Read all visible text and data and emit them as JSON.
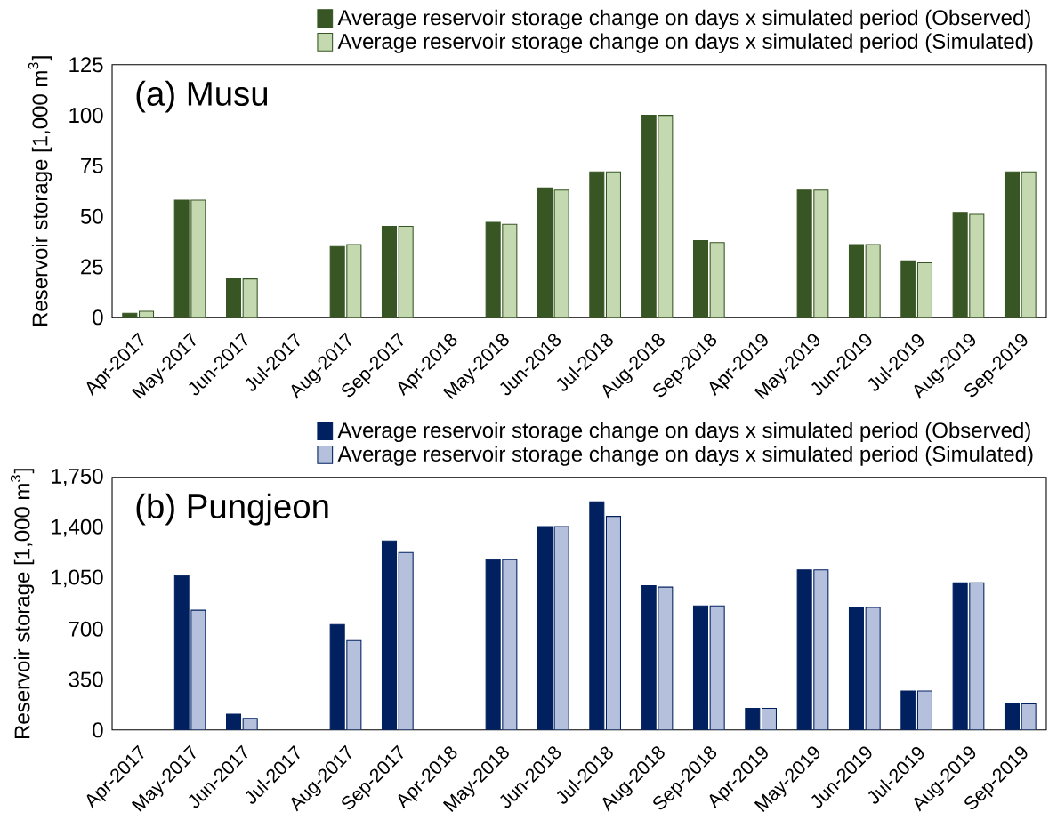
{
  "chart_data": [
    {
      "type": "bar",
      "title": "(a) Musu",
      "ylabel": "Reservoir storage [1,000 m$^{3}$]",
      "categories": [
        "Apr-2017",
        "May-2017",
        "Jun-2017",
        "Jul-2017",
        "Aug-2017",
        "Sep-2017",
        "Apr-2018",
        "May-2018",
        "Jun-2018",
        "Jul-2018",
        "Aug-2018",
        "Sep-2018",
        "Apr-2019",
        "May-2019",
        "Jun-2019",
        "Jul-2019",
        "Aug-2019",
        "Sep-2019"
      ],
      "series": [
        {
          "name": "Average reservoir storage change on days x simulated period (Observed)",
          "color": "#375623",
          "values": [
            2,
            58,
            19,
            null,
            35,
            45,
            null,
            47,
            64,
            72,
            100,
            38,
            null,
            63,
            36,
            28,
            52,
            72
          ]
        },
        {
          "name": "Average reservoir storage change on days x simulated period (Simulated)",
          "color": "#c5d9b0",
          "values": [
            3,
            58,
            19,
            null,
            36,
            45,
            null,
            46,
            63,
            72,
            100,
            37,
            null,
            63,
            36,
            27,
            51,
            72
          ]
        }
      ],
      "ylim": [
        0,
        125
      ],
      "yticks": [
        0,
        25,
        50,
        75,
        100,
        125
      ],
      "legend": "top right",
      "grid": false
    },
    {
      "type": "bar",
      "title": "(b) Pungjeon",
      "ylabel": "Reservoir storage [1,000 m$^{3}$]",
      "categories": [
        "Apr-2017",
        "May-2017",
        "Jun-2017",
        "Jul-2017",
        "Aug-2017",
        "Sep-2017",
        "Apr-2018",
        "May-2018",
        "Jun-2018",
        "Jul-2018",
        "Aug-2018",
        "Sep-2018",
        "Apr-2019",
        "May-2019",
        "Jun-2019",
        "Jul-2019",
        "Aug-2019",
        "Sep-2019"
      ],
      "series": [
        {
          "name": "Average reservoir storage change on days x simulated period (Observed)",
          "color": "#002060",
          "values": [
            null,
            1070,
            110,
            null,
            730,
            1310,
            null,
            1180,
            1410,
            1580,
            1000,
            860,
            150,
            1110,
            850,
            270,
            1020,
            180
          ]
        },
        {
          "name": "Average reservoir storage change on days x simulated period (Simulated)",
          "color": "#b4c0dc",
          "values": [
            null,
            830,
            80,
            null,
            620,
            1230,
            null,
            1180,
            1410,
            1480,
            990,
            860,
            150,
            1110,
            850,
            270,
            1020,
            180
          ]
        }
      ],
      "ylim": [
        0,
        1750
      ],
      "yticks": [
        {
          "value": 0,
          "label": "0"
        },
        {
          "value": 350,
          "label": "350"
        },
        {
          "value": 700,
          "label": "700"
        },
        {
          "value": 1050,
          "label": "1,050"
        },
        {
          "value": 1400,
          "label": "1,400"
        },
        {
          "value": 1750,
          "label": "1,750"
        }
      ],
      "legend": "top right",
      "grid": false
    }
  ]
}
